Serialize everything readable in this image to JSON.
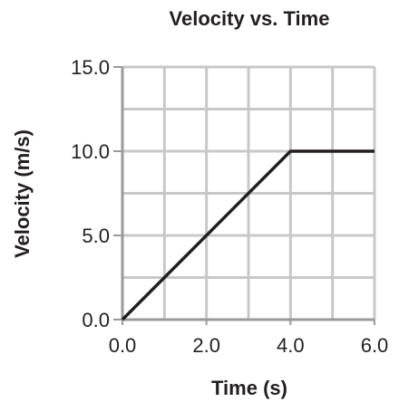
{
  "chart_data": {
    "type": "line",
    "title": "Velocity vs. Time",
    "xlabel": "Time (s)",
    "ylabel": "Velocity (m/s)",
    "xlim": [
      0,
      6
    ],
    "ylim": [
      0,
      15
    ],
    "grid": true,
    "x_ticks": [
      {
        "value": 0,
        "label": "0.0"
      },
      {
        "value": 2,
        "label": "2.0"
      },
      {
        "value": 4,
        "label": "4.0"
      },
      {
        "value": 6,
        "label": "6.0"
      }
    ],
    "y_ticks": [
      {
        "value": 0,
        "label": "0.0"
      },
      {
        "value": 5,
        "label": "5.0"
      },
      {
        "value": 10,
        "label": "10.0"
      },
      {
        "value": 15,
        "label": "15.0"
      }
    ],
    "grid_x": [
      1,
      2,
      3,
      4,
      5,
      6
    ],
    "grid_y": [
      2.5,
      5,
      7.5,
      10,
      12.5,
      15
    ],
    "series": [
      {
        "x": [
          0,
          4,
          6
        ],
        "y": [
          0,
          10,
          10
        ]
      }
    ],
    "colors": {
      "line": "#231f20",
      "grid": "#c8c8c8",
      "axis": "#9a9a9a"
    }
  }
}
